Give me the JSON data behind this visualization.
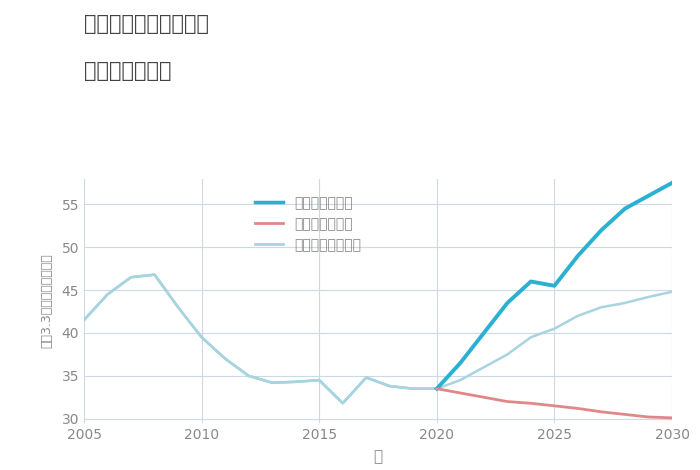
{
  "title_line1": "千葉県銚子市桜井町の",
  "title_line2": "土地の価格推移",
  "xlabel": "年",
  "ylabel": "坪（3.3㎡）単価（万円）",
  "background_color": "#ffffff",
  "grid_color": "#ccd9e8",
  "title_color": "#444444",
  "label_color": "#888888",
  "tick_color": "#888888",
  "good_hist": {
    "color": "#8cc8d8",
    "linewidth": 1.8,
    "x": [
      2005,
      2006,
      2007,
      2008,
      2009,
      2010,
      2011,
      2012,
      2013,
      2014,
      2015,
      2016,
      2017,
      2018,
      2019,
      2020
    ],
    "y": [
      41.5,
      44.5,
      46.5,
      46.8,
      43.0,
      39.5,
      37.0,
      35.0,
      34.2,
      34.3,
      34.5,
      31.8,
      34.8,
      33.8,
      33.5,
      33.5
    ]
  },
  "good_future": {
    "label": "グッドシナリオ",
    "color": "#2ab0d0",
    "linewidth": 2.8,
    "x": [
      2020,
      2021,
      2022,
      2023,
      2024,
      2025,
      2026,
      2027,
      2028,
      2029,
      2030
    ],
    "y": [
      33.5,
      36.5,
      40.0,
      43.5,
      46.0,
      45.5,
      49.0,
      52.0,
      54.5,
      56.0,
      57.5
    ]
  },
  "bad_scenario": {
    "label": "バッドシナリオ",
    "color": "#e08888",
    "linewidth": 2.0,
    "x": [
      2020,
      2021,
      2022,
      2023,
      2024,
      2025,
      2026,
      2027,
      2028,
      2029,
      2030
    ],
    "y": [
      33.5,
      33.0,
      32.5,
      32.0,
      31.8,
      31.5,
      31.2,
      30.8,
      30.5,
      30.2,
      30.1
    ]
  },
  "normal_scenario": {
    "label": "ノーマルシナリオ",
    "color": "#a8d4e0",
    "linewidth": 1.8,
    "x": [
      2005,
      2006,
      2007,
      2008,
      2009,
      2010,
      2011,
      2012,
      2013,
      2014,
      2015,
      2016,
      2017,
      2018,
      2019,
      2020,
      2021,
      2022,
      2023,
      2024,
      2025,
      2026,
      2027,
      2028,
      2029,
      2030
    ],
    "y": [
      41.5,
      44.5,
      46.5,
      46.8,
      43.0,
      39.5,
      37.0,
      35.0,
      34.2,
      34.3,
      34.5,
      31.8,
      34.8,
      33.8,
      33.5,
      33.5,
      34.5,
      36.0,
      37.5,
      39.5,
      40.5,
      42.0,
      43.0,
      43.5,
      44.2,
      44.8
    ]
  },
  "legend_good_color": "#2ab0d0",
  "legend_bad_color": "#e08888",
  "legend_normal_color": "#a8d4e0",
  "xlim": [
    2005,
    2030
  ],
  "ylim": [
    29.5,
    58
  ],
  "xticks": [
    2005,
    2010,
    2015,
    2020,
    2025,
    2030
  ],
  "yticks": [
    30,
    35,
    40,
    45,
    50,
    55
  ]
}
